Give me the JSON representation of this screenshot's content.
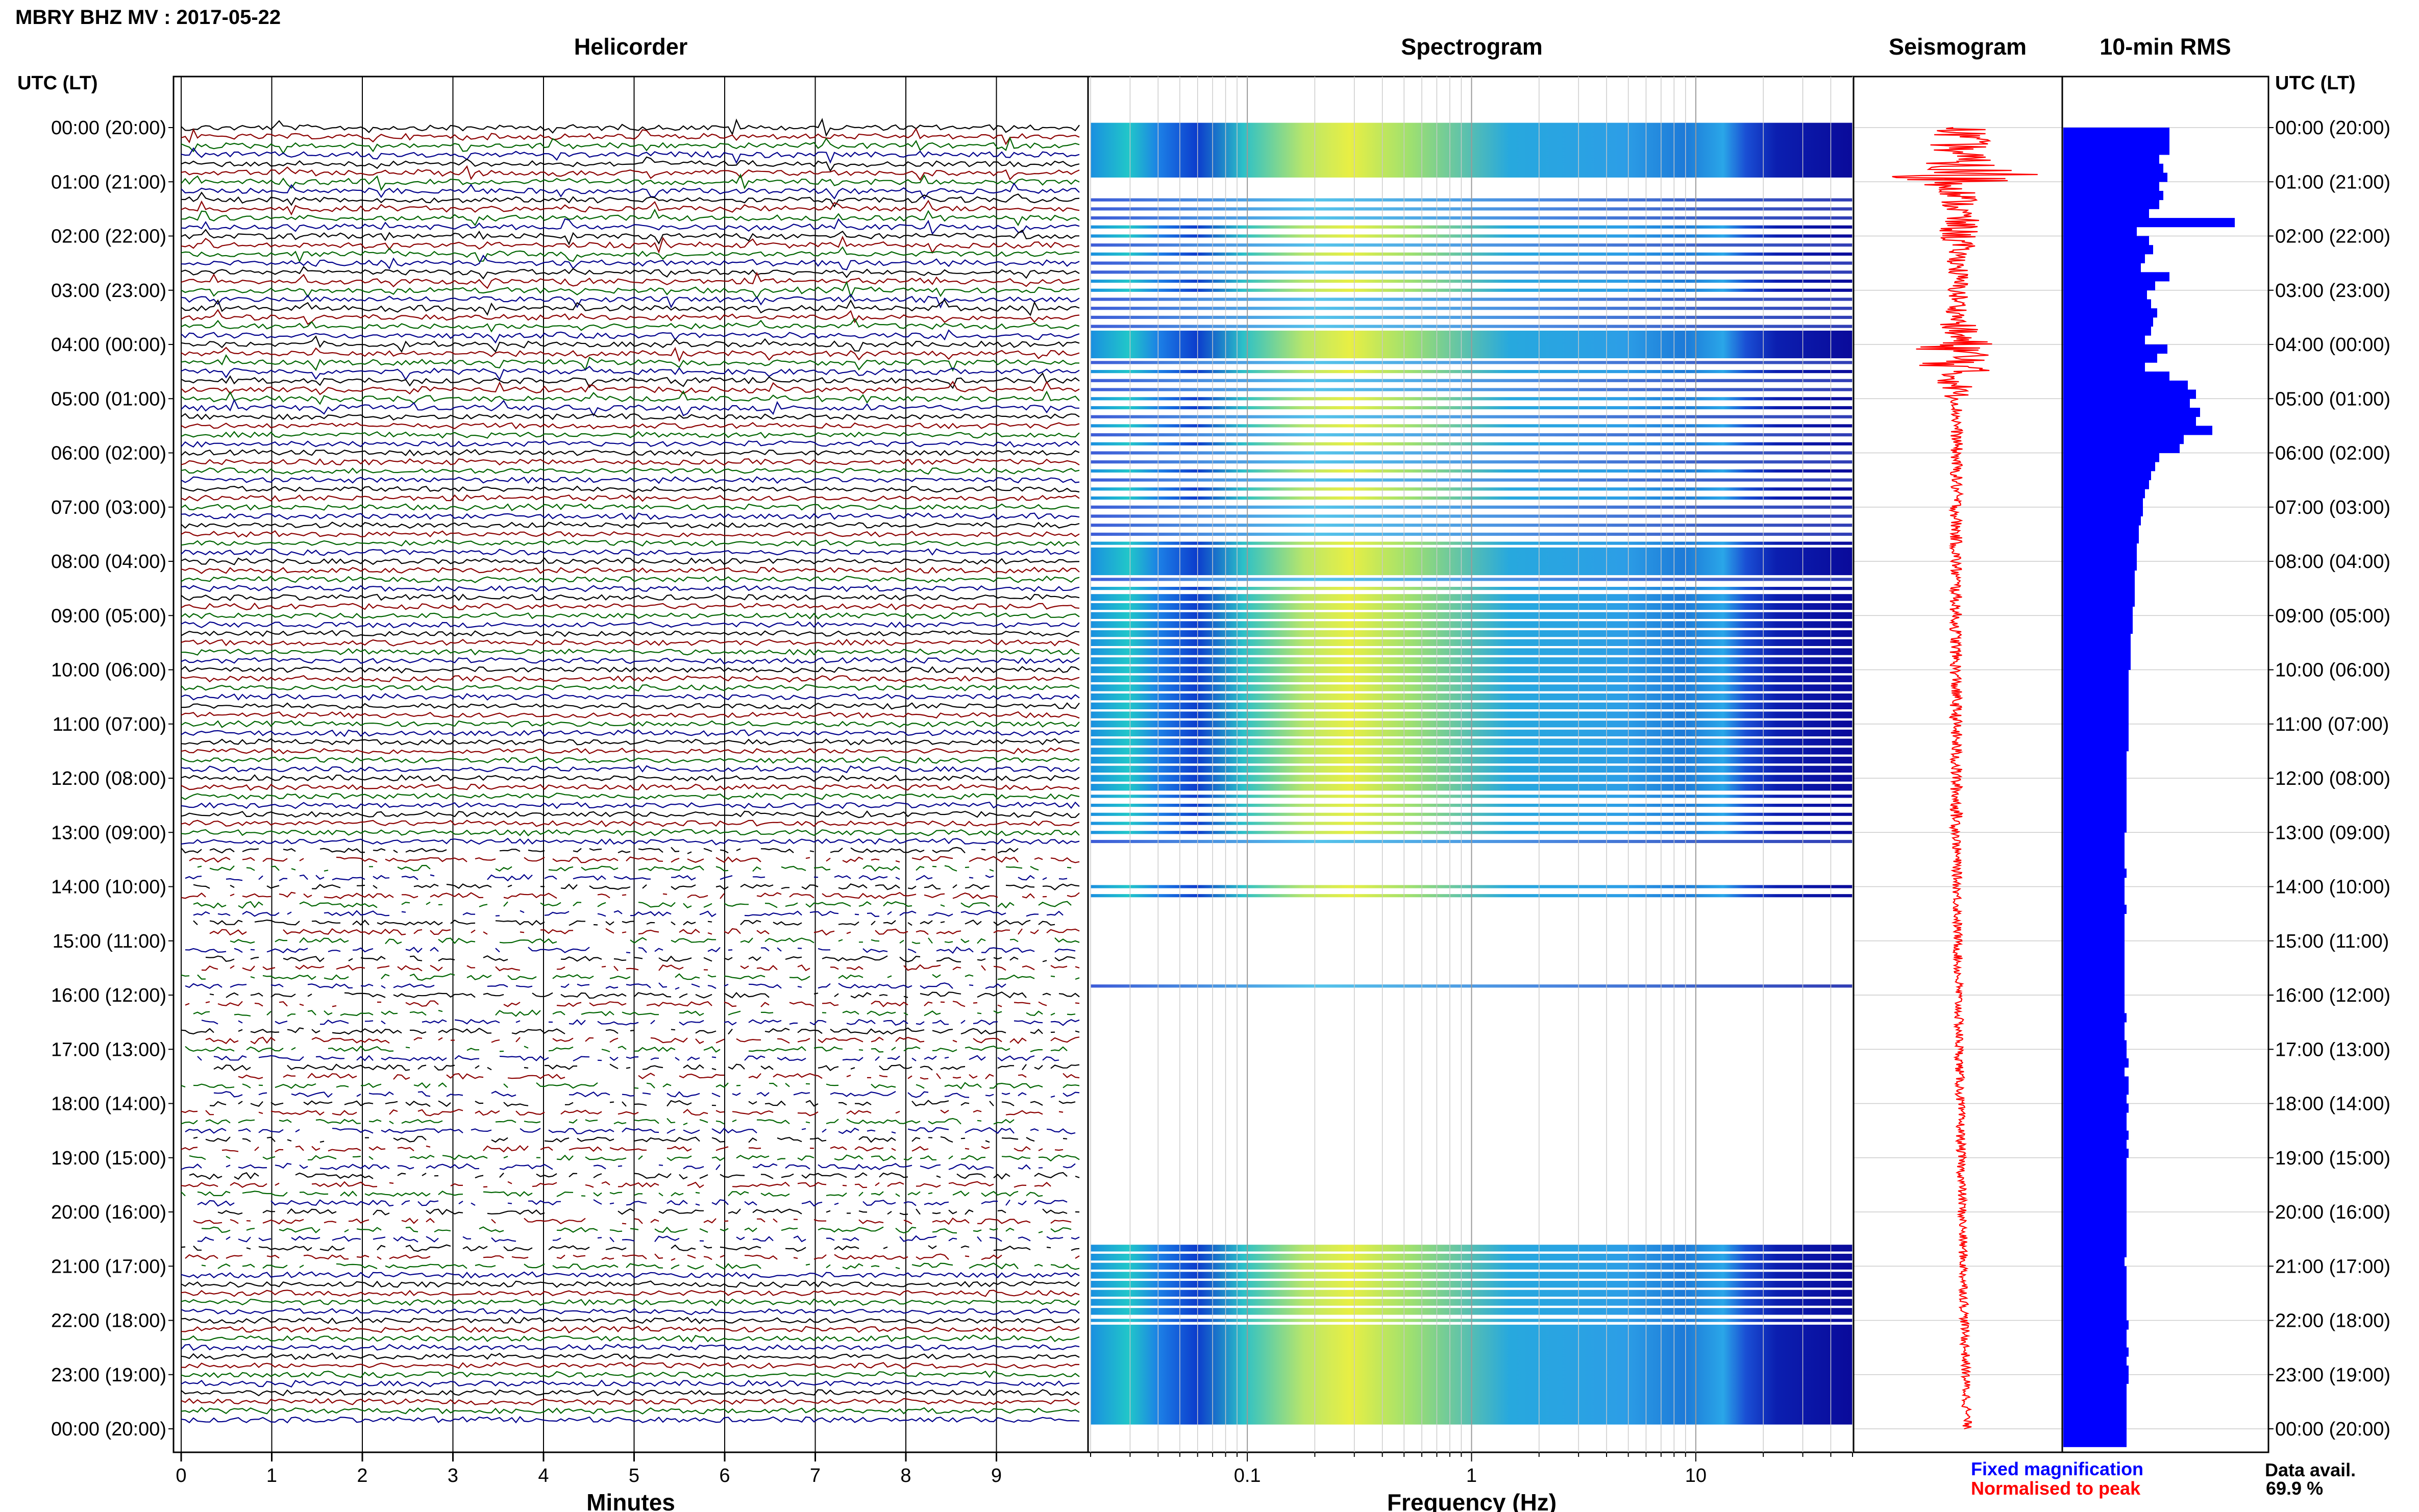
{
  "header": {
    "station": "MBRY BHZ MV : 2017-05-22"
  },
  "panels": {
    "helicorder": "Helicorder",
    "spectrogram": "Spectrogram",
    "seismogram": "Seismogram",
    "rms": "10-min RMS"
  },
  "time_axis_header": "UTC (LT)",
  "time_labels": [
    "00:00 (20:00)",
    "01:00 (21:00)",
    "02:00 (22:00)",
    "03:00 (23:00)",
    "04:00 (00:00)",
    "05:00 (01:00)",
    "06:00 (02:00)",
    "07:00 (03:00)",
    "08:00 (04:00)",
    "09:00 (05:00)",
    "10:00 (06:00)",
    "11:00 (07:00)",
    "12:00 (08:00)",
    "13:00 (09:00)",
    "14:00 (10:00)",
    "15:00 (11:00)",
    "16:00 (12:00)",
    "17:00 (13:00)",
    "18:00 (14:00)",
    "19:00 (15:00)",
    "20:00 (16:00)",
    "21:00 (17:00)",
    "22:00 (18:00)",
    "23:00 (19:00)",
    "00:00 (20:00)"
  ],
  "footer": {
    "fixed_mag": "Fixed magnification",
    "normalised": "Normalised to peak",
    "data_avail_label": "Data avail.",
    "data_avail_value": "69.9 %"
  },
  "colors": {
    "trace_cycle": [
      "#000000",
      "#8b0000",
      "#006400",
      "#00008b"
    ],
    "seismogram": "#ff0000",
    "rms": "#0000ff",
    "fixed_mag": "#0000ff",
    "normalised": "#ff0000"
  },
  "chart_data": [
    {
      "type": "line",
      "panel": "helicorder",
      "title": "Helicorder",
      "xlabel": "Minutes",
      "xticks": [
        0,
        1,
        2,
        3,
        4,
        5,
        6,
        7,
        8,
        9
      ],
      "xlim": [
        0,
        10
      ],
      "rows_per_hour": 6,
      "hours": 24,
      "data_gaps_present": true
    },
    {
      "type": "heatmap",
      "panel": "spectrogram",
      "title": "Spectrogram",
      "xlabel": "Frequency (Hz)",
      "xscale": "log",
      "xlim": [
        0.02,
        50
      ],
      "xtick_labels": [
        "0.1",
        "1",
        "10"
      ],
      "xtick_values": [
        0.1,
        1,
        10
      ],
      "colormap": "jet"
    },
    {
      "type": "line",
      "panel": "seismogram",
      "title": "Seismogram",
      "normalisation": "Normalised to peak"
    },
    {
      "type": "bar",
      "panel": "rms",
      "title": "10-min RMS",
      "orientation": "horizontal",
      "note": "relative RMS amplitude per 10-min window, 00:00-24:00 UTC",
      "values": [
        0.52,
        0.52,
        0.52,
        0.47,
        0.49,
        0.51,
        0.47,
        0.49,
        0.47,
        0.42,
        0.84,
        0.36,
        0.42,
        0.44,
        0.4,
        0.38,
        0.52,
        0.45,
        0.41,
        0.43,
        0.46,
        0.44,
        0.43,
        0.4,
        0.51,
        0.46,
        0.4,
        0.52,
        0.61,
        0.65,
        0.62,
        0.67,
        0.65,
        0.73,
        0.59,
        0.57,
        0.47,
        0.45,
        0.43,
        0.42,
        0.4,
        0.39,
        0.39,
        0.38,
        0.37,
        0.37,
        0.36,
        0.36,
        0.36,
        0.35,
        0.35,
        0.35,
        0.35,
        0.34,
        0.34,
        0.34,
        0.33,
        0.33,
        0.33,
        0.33,
        0.32,
        0.32,
        0.32,
        0.32,
        0.32,
        0.32,
        0.32,
        0.32,
        0.32,
        0.31,
        0.31,
        0.31,
        0.31,
        0.31,
        0.31,
        0.31,
        0.31,
        0.31,
        0.3,
        0.3,
        0.3,
        0.3,
        0.31,
        0.3,
        0.3,
        0.3,
        0.31,
        0.3,
        0.3,
        0.3,
        0.3,
        0.3,
        0.3,
        0.3,
        0.3,
        0.3,
        0.3,
        0.3,
        0.31,
        0.3,
        0.3,
        0.31,
        0.31,
        0.32,
        0.3,
        0.32,
        0.32,
        0.31,
        0.32,
        0.31,
        0.31,
        0.32,
        0.31,
        0.32,
        0.31,
        0.31,
        0.31,
        0.31,
        0.31,
        0.31,
        0.31,
        0.31,
        0.31,
        0.31,
        0.31,
        0.3,
        0.31,
        0.31,
        0.31,
        0.31,
        0.31,
        0.31,
        0.32,
        0.31,
        0.31,
        0.32,
        0.31,
        0.32,
        0.32,
        0.31,
        0.31,
        0.31,
        0.31,
        0.31,
        0.31,
        0.31
      ]
    }
  ]
}
